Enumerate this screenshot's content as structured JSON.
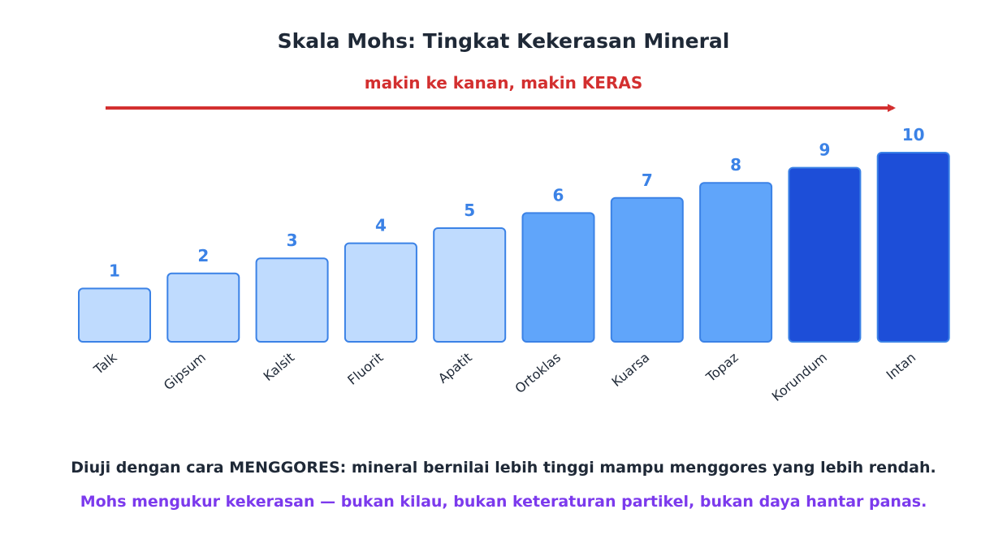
{
  "title": "Skala Mohs: Tingkat Kekerasan Mineral",
  "subtitle": "makin ke kanan, makin KERAS",
  "notes": {
    "method": "Diuji dengan cara MENGGORES: mineral bernilai lebih tinggi mampu menggores yang lebih rendah.",
    "clarification": "Mohs mengukur kekerasan — bukan kilau, bukan keteraturan partikel, bukan daya hantar panas."
  },
  "colors": {
    "title": "#1f2937",
    "subtitle": "#d32f2f",
    "arrow": "#d32f2f",
    "note": "#1f2937",
    "clarification": "#7c3aed",
    "value_label": "#3b82e6",
    "bar_stroke": "#3b82e6",
    "bar_soft": "#bfdbfe",
    "bar_medium": "#60a5fa",
    "bar_hard": "#1d4ed8"
  },
  "chart_data": {
    "type": "bar",
    "categories": [
      "Talk",
      "Gipsum",
      "Kalsit",
      "Fluorit",
      "Apatit",
      "Ortoklas",
      "Kuarsa",
      "Topaz",
      "Korundum",
      "Intan"
    ],
    "values": [
      1,
      2,
      3,
      4,
      5,
      6,
      7,
      8,
      9,
      10
    ],
    "value_labels": [
      "1",
      "2",
      "3",
      "4",
      "5",
      "6",
      "7",
      "8",
      "9",
      "10"
    ],
    "bar_groups": [
      "soft",
      "soft",
      "soft",
      "soft",
      "soft",
      "medium",
      "medium",
      "medium",
      "hard",
      "hard"
    ],
    "xlabel": "",
    "ylabel": "",
    "grid": false,
    "arrow_direction": "right"
  }
}
